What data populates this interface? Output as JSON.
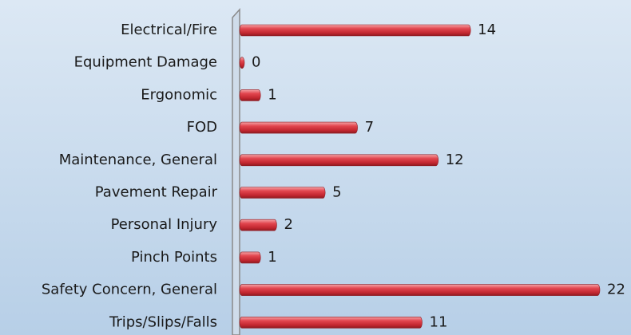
{
  "chart_data": {
    "type": "bar",
    "orientation": "horizontal",
    "categories": [
      "Electrical/Fire",
      "Equipment Damage",
      "Ergonomic",
      "FOD",
      "Maintenance, General",
      "Pavement Repair",
      "Personal Injury",
      "Pinch Points",
      "Safety Concern, General",
      "Trips/Slips/Falls"
    ],
    "values": [
      14,
      0,
      1,
      7,
      12,
      5,
      2,
      1,
      22,
      11
    ],
    "color": "#d9323c"
  }
}
